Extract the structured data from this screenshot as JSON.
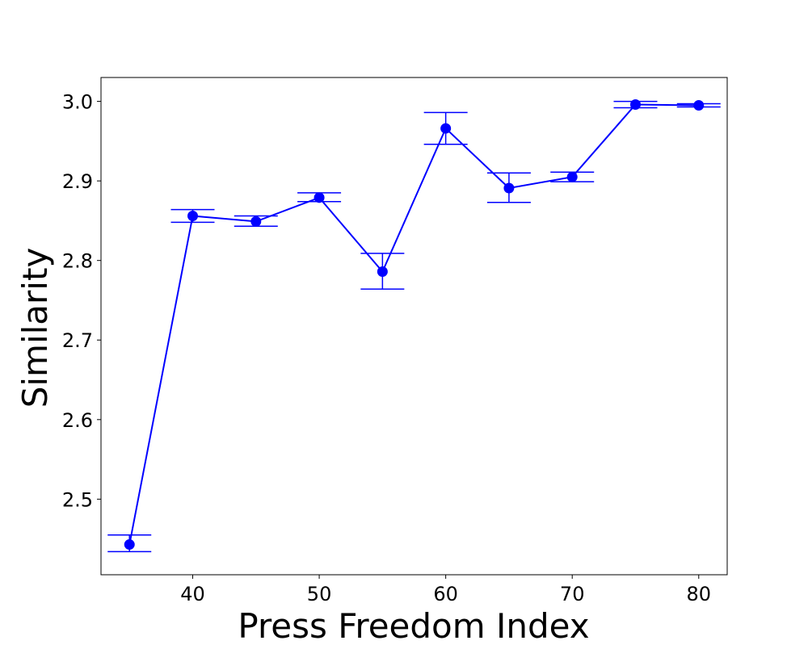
{
  "chart_data": {
    "type": "line",
    "title": "",
    "xlabel": "Press Freedom Index",
    "ylabel": "Similarity",
    "xlim": [
      32.75,
      82.25
    ],
    "ylim": [
      2.405,
      3.03
    ],
    "x_ticks": [
      40,
      50,
      60,
      70,
      80
    ],
    "y_ticks": [
      2.5,
      2.6,
      2.7,
      2.8,
      2.9,
      3.0
    ],
    "x_tick_labels": [
      "40",
      "50",
      "60",
      "70",
      "80"
    ],
    "y_tick_labels": [
      "2.5",
      "2.6",
      "2.7",
      "2.8",
      "2.9",
      "3.0"
    ],
    "grid": false,
    "legend": "none",
    "series": [
      {
        "color": "#0000ff",
        "marker": "circle",
        "error_bars": true,
        "points": [
          {
            "x": 35,
            "y": 2.443,
            "err_low": 2.434,
            "err_high": 2.455
          },
          {
            "x": 40,
            "y": 2.856,
            "err_low": 2.848,
            "err_high": 2.864
          },
          {
            "x": 45,
            "y": 2.849,
            "err_low": 2.843,
            "err_high": 2.856
          },
          {
            "x": 50,
            "y": 2.879,
            "err_low": 2.874,
            "err_high": 2.885
          },
          {
            "x": 55,
            "y": 2.786,
            "err_low": 2.764,
            "err_high": 2.809
          },
          {
            "x": 60,
            "y": 2.966,
            "err_low": 2.946,
            "err_high": 2.986
          },
          {
            "x": 65,
            "y": 2.891,
            "err_low": 2.873,
            "err_high": 2.91
          },
          {
            "x": 70,
            "y": 2.905,
            "err_low": 2.899,
            "err_high": 2.911
          },
          {
            "x": 75,
            "y": 2.996,
            "err_low": 2.992,
            "err_high": 3.0
          },
          {
            "x": 80,
            "y": 2.995,
            "err_low": 2.993,
            "err_high": 2.997
          }
        ]
      }
    ]
  }
}
